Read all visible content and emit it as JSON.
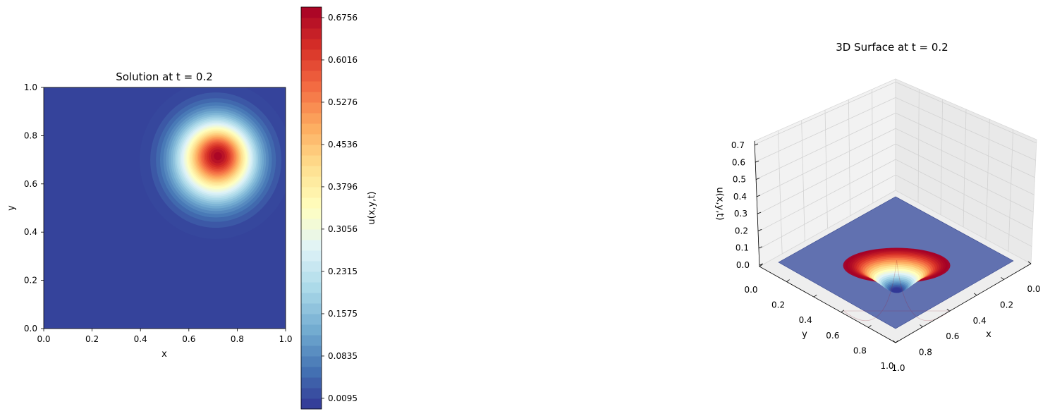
{
  "chart_data": [
    {
      "type": "heatmap",
      "subtype": "filled-contour",
      "title": "Solution at t = 0.2",
      "xlabel": "x",
      "ylabel": "y",
      "xlim": [
        0.0,
        1.0
      ],
      "ylim": [
        0.0,
        1.0
      ],
      "xticks": [
        "0.0",
        "0.2",
        "0.4",
        "0.6",
        "0.8",
        "1.0"
      ],
      "yticks": [
        "0.0",
        "0.2",
        "0.4",
        "0.6",
        "0.8",
        "1.0"
      ],
      "peak": {
        "x": 0.72,
        "y": 0.715,
        "value": 0.695
      },
      "background_value": 0.0,
      "colormap": "RdYlBu_r",
      "colorbar": {
        "label": "u(x,y,t)",
        "range": [
          -0.0091,
          0.6941
        ],
        "levels": 38,
        "ticks": [
          "0.0095",
          "0.0835",
          "0.1575",
          "0.2315",
          "0.3056",
          "0.3796",
          "0.4536",
          "0.5276",
          "0.6016",
          "0.6756"
        ]
      }
    },
    {
      "type": "surface",
      "title": "3D Surface at t = 0.2",
      "xlabel": "x",
      "ylabel": "y",
      "zlabel": "u(x,y,t)",
      "xlim": [
        0.0,
        1.0
      ],
      "ylim": [
        0.0,
        1.0
      ],
      "zlim": [
        0.0,
        0.7
      ],
      "xticks": [
        "0.0",
        "0.2",
        "0.4",
        "0.6",
        "0.8",
        "1.0"
      ],
      "yticks": [
        "0.0",
        "0.2",
        "0.4",
        "0.6",
        "0.8",
        "1.0"
      ],
      "zticks": [
        "0.0",
        "0.1",
        "0.2",
        "0.3",
        "0.4",
        "0.5",
        "0.6",
        "0.7"
      ],
      "peak": {
        "x": 0.72,
        "y": 0.715,
        "value": 0.695
      },
      "colormap": "RdYlBu_r"
    }
  ]
}
